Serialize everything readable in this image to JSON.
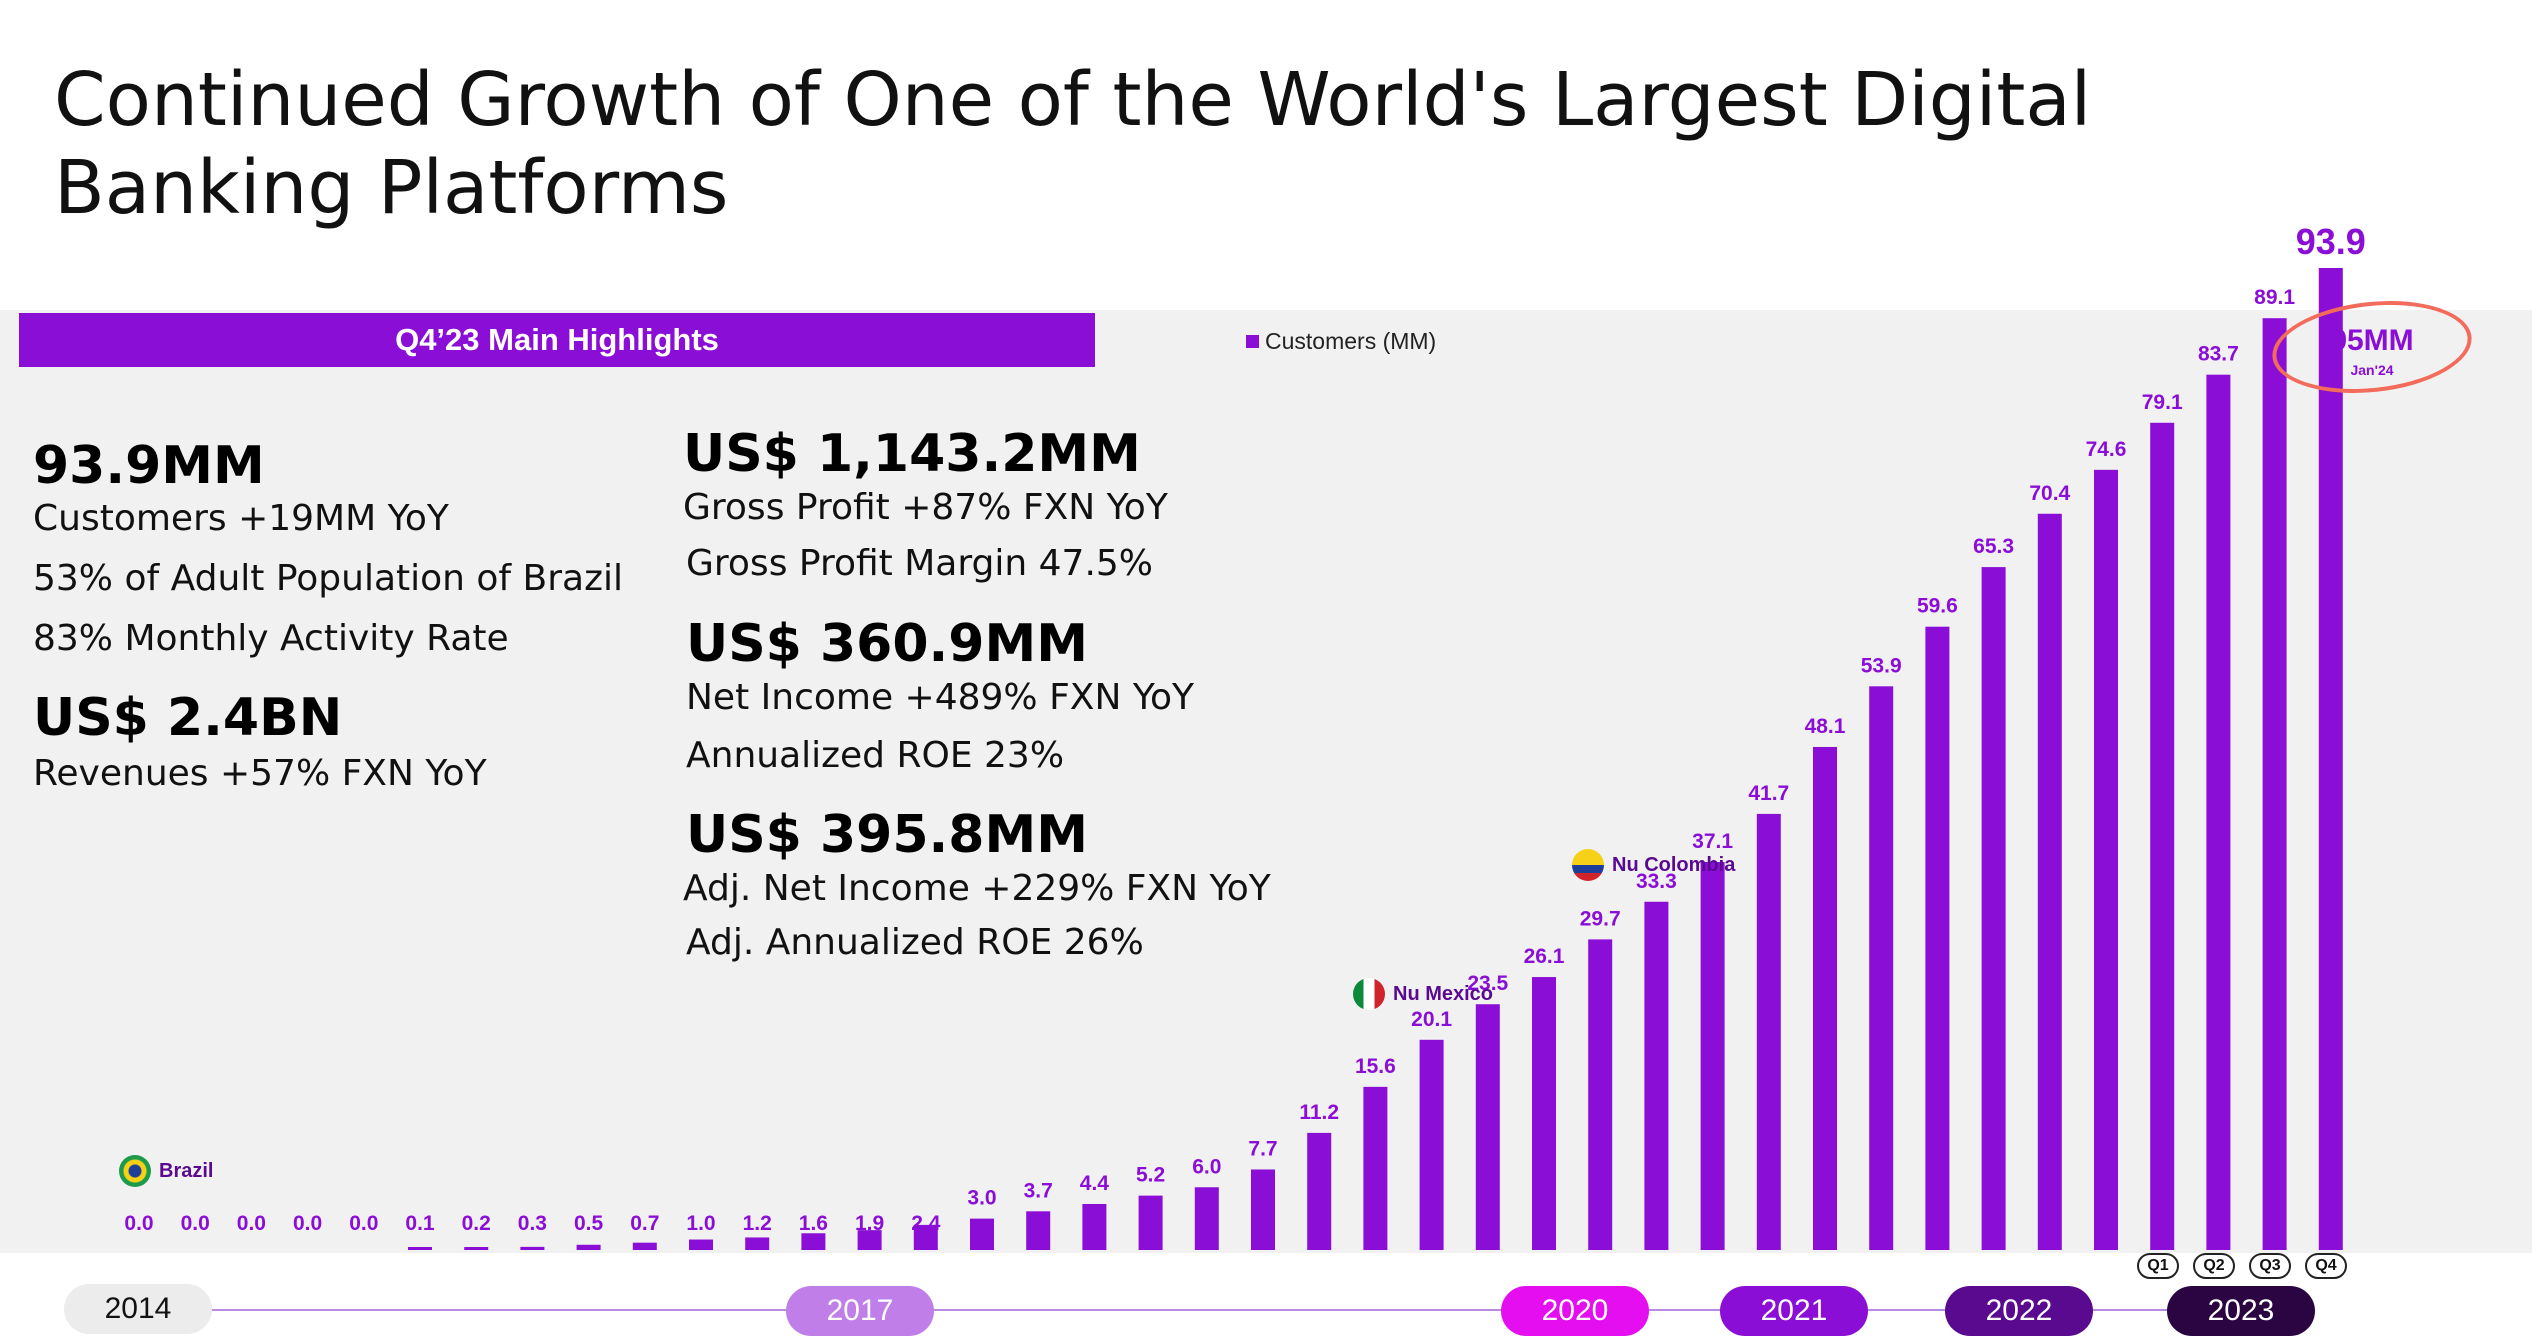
{
  "title": "Continued Growth of One of the World's Largest Digital Banking Platforms",
  "highlights": {
    "banner": "Q4’23 Main Highlights",
    "col1": {
      "k1_value": "93.9MM",
      "k1_line1": "Customers +19MM YoY",
      "k1_line2": "53% of Adult Population of Brazil",
      "k1_line3": "83% Monthly Activity Rate",
      "k2_value": "US$ 2.4BN",
      "k2_line1": "Revenues +57%  FXN YoY"
    },
    "col2": {
      "k3_value": "US$ 1,143.2MM",
      "k3_line1": "Gross Profit +87%  FXN YoY",
      "k3_line2": "Gross Profit Margin 47.5%",
      "k4_value": "US$ 360.9MM",
      "k4_line1": "Net Income +489% FXN YoY",
      "k4_line2": "Annualized ROE 23%",
      "k5_value": "US$ 395.8MM",
      "k5_line1": "Adj. Net Income +229% FXN YoY",
      "k5_line2": "Adj. Annualized ROE 26%"
    }
  },
  "chart_data": {
    "type": "bar",
    "title": "",
    "xlabel": "",
    "ylabel": "",
    "ylim": [
      0,
      100
    ],
    "grid": false,
    "legend": "top-center",
    "series": [
      {
        "name": "Customers (MM)",
        "color": "#8a0ed6",
        "values": [
          0.0,
          0.0,
          0.0,
          0.0,
          0.0,
          0.1,
          0.2,
          0.3,
          0.5,
          0.7,
          1.0,
          1.2,
          1.6,
          1.9,
          2.4,
          3.0,
          3.7,
          4.4,
          5.2,
          6.0,
          7.7,
          11.2,
          15.6,
          20.1,
          23.5,
          26.1,
          29.7,
          33.3,
          37.1,
          41.7,
          48.1,
          53.9,
          59.6,
          65.3,
          70.4,
          74.6,
          79.1,
          83.7,
          89.1,
          93.9
        ],
        "labels": [
          "0.0",
          "0.0",
          "0.0",
          "0.0",
          "0.0",
          "0.1",
          "0.2",
          "0.3",
          "0.5",
          "0.7",
          "1.0",
          "1.2",
          "1.6",
          "1.9",
          "2.4",
          "3.0",
          "3.7",
          "4.4",
          "5.2",
          "6.0",
          "7.7",
          "11.2",
          "15.6",
          "20.1",
          "23.5",
          "26.1",
          "29.7",
          "33.3",
          "37.1",
          "41.7",
          "48.1",
          "53.9",
          "59.6",
          "65.3",
          "70.4",
          "74.6",
          "79.1",
          "83.7",
          "89.1",
          "93.9"
        ]
      }
    ],
    "timeline": {
      "years": [
        {
          "label": "2014",
          "color": "#ececec",
          "text_color": "#111111"
        },
        {
          "label": "2017",
          "color": "#c07fe8",
          "text_color": "#ffffff"
        },
        {
          "label": "2020",
          "color": "#e50ef0",
          "text_color": "#ffffff"
        },
        {
          "label": "2021",
          "color": "#8a0ed6",
          "text_color": "#ffffff"
        },
        {
          "label": "2022",
          "color": "#5a0a8e",
          "text_color": "#ffffff"
        },
        {
          "label": "2023",
          "color": "#2a0542",
          "text_color": "#ffffff"
        }
      ],
      "quarters": [
        "Q1",
        "Q2",
        "Q3",
        "Q4"
      ]
    },
    "annotations": {
      "brazil": "Brazil",
      "mexico": "Nu Mexico",
      "colombia": "Nu Colombia",
      "callout_value": "95MM",
      "callout_sub": "Jan'24"
    }
  },
  "colors": {
    "accent": "#8a0ed6",
    "callout_ring": "#f26b5b"
  }
}
